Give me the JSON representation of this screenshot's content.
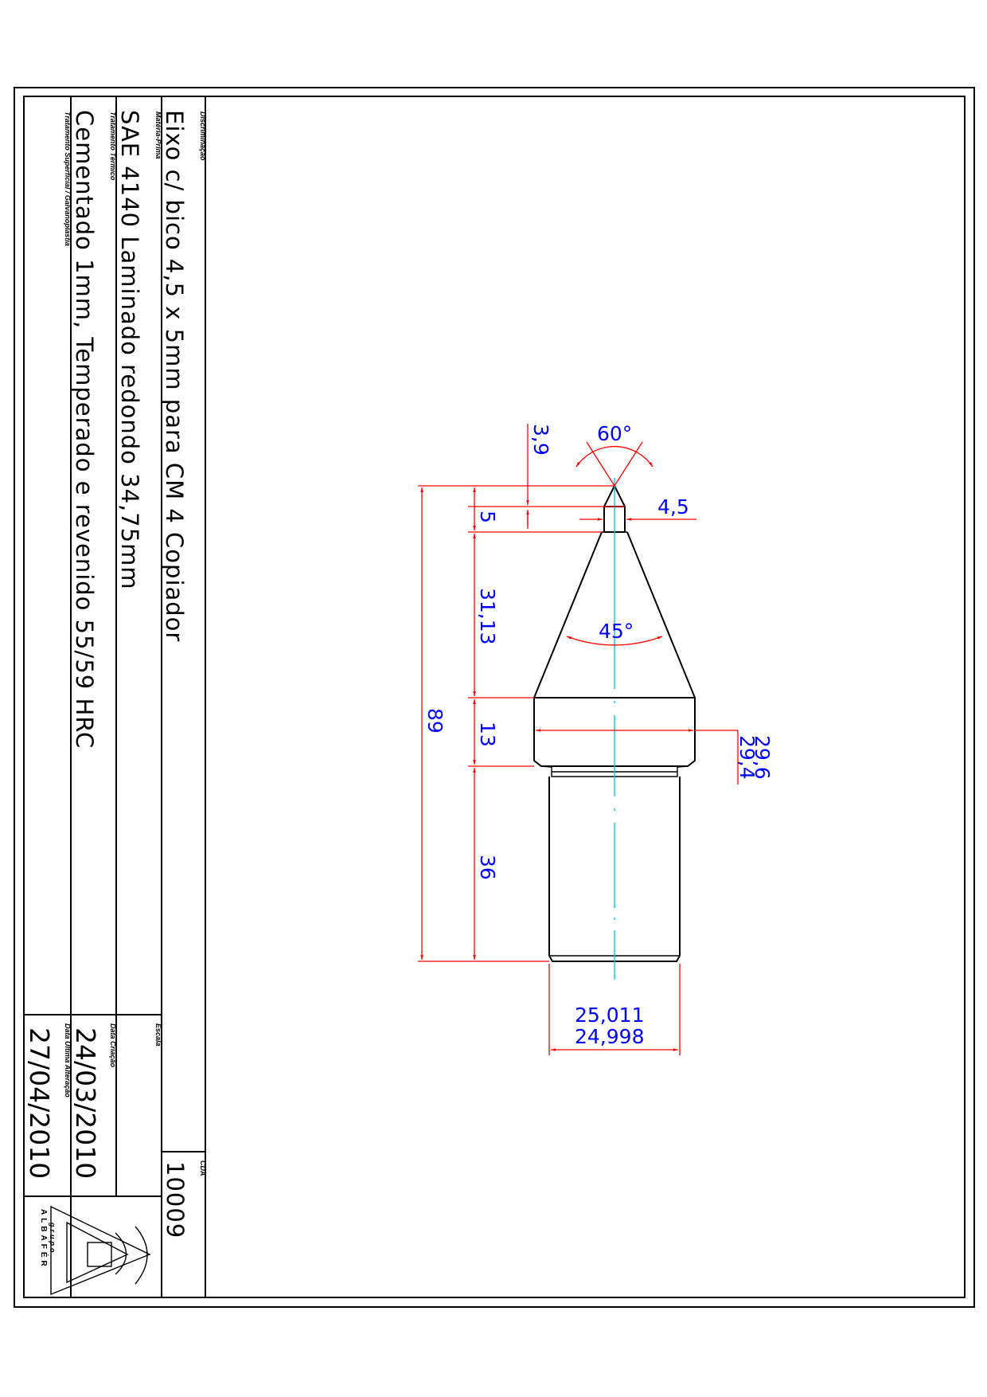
{
  "title_block": {
    "description_label": "Discriminação",
    "description": "Eixo c/ bico 4,5 x 5mm para CM 4 Copiador",
    "material_label": "Matéria-Prima",
    "material": "SAE 4140 Laminado redondo 34,75mm",
    "heat_treatment_label": "Tratamento Térmico",
    "heat_treatment": "Cementado 1mm, Temperado e revenido 55/59 HRC",
    "surface_treatment_label": "Tratamento Superficial / Galvanoplastia",
    "surface_treatment": "",
    "cda_label": "CDA",
    "cda": "10009",
    "scale_label": "Escala",
    "scale": "",
    "created_label": "Data Criação",
    "created": "24/03/2010",
    "modified_label": "Data Última Alteração",
    "modified": "27/04/2010",
    "logo_text": "ALBAFÉR",
    "logo_subtext": "grupo"
  },
  "dimensions": {
    "tip_angle": "60°",
    "cone_angle": "45°",
    "tip_length": "3,9",
    "pin_diameter": "4,5",
    "pin_length": "5",
    "cone_length": "31,13",
    "collar_length": "13",
    "collar_dia_max": "29,6",
    "collar_dia_min": "29,4",
    "shank_length": "36",
    "total_length": "89",
    "shank_dia_max": "25,011",
    "shank_dia_min": "24,998"
  },
  "colors": {
    "dimension_lines": "#ff0000",
    "dimension_text": "#0000ff",
    "center_line": "#00c8e6",
    "outline": "#000000"
  }
}
